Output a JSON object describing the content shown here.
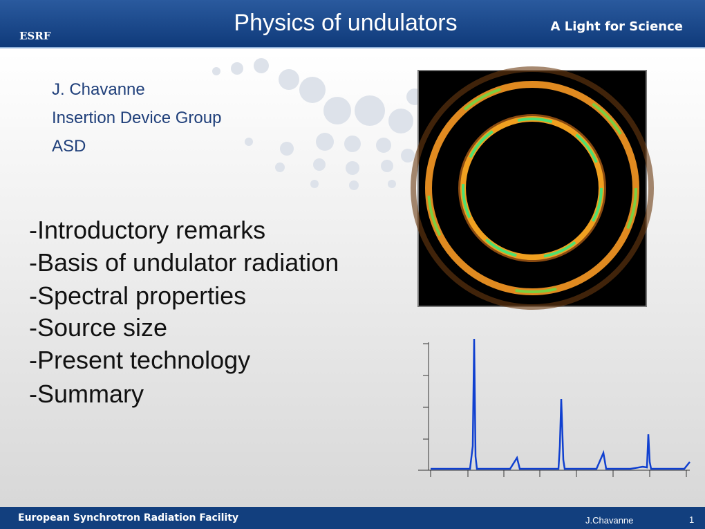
{
  "header": {
    "logo": "ESRF",
    "title": "Physics of undulators",
    "tagline": "A Light for Science"
  },
  "author": {
    "lines": [
      "J. Chavanne",
      "Insertion Device Group",
      "ASD"
    ]
  },
  "outline": {
    "items": [
      "-Introductory remarks",
      "-Basis of undulator radiation",
      "-Spectral properties",
      "-Source size",
      "-Present technology",
      "-Summary"
    ]
  },
  "footer": {
    "organization": "European Synchrotron Radiation Facility",
    "author": "J.Chavanne",
    "page_number": "1"
  }
}
